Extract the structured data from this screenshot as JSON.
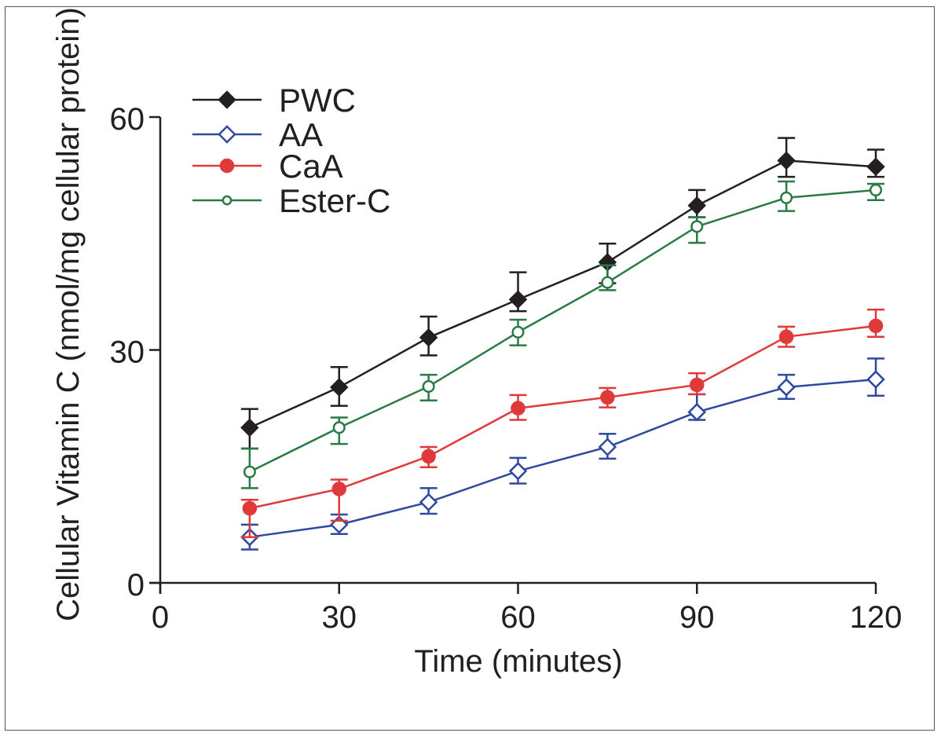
{
  "chart_data": {
    "type": "line",
    "title": "",
    "xlabel": "Time (minutes)",
    "ylabel": "Cellular Vitamin C (nmol/mg cellular protein)",
    "xlim": [
      0,
      120
    ],
    "ylim": [
      0,
      60
    ],
    "xticks": [
      0,
      30,
      60,
      90,
      120
    ],
    "xtick_labels": [
      "0",
      "30",
      "60",
      "90",
      "120"
    ],
    "yticks": [
      0,
      30,
      60
    ],
    "ytick_labels": [
      "0",
      "30",
      "60"
    ],
    "grid": false,
    "legend_position": "top-left",
    "x": [
      15,
      30,
      45,
      60,
      75,
      90,
      105,
      120
    ],
    "series": [
      {
        "name": "PWC",
        "color": "#231f20",
        "marker": "filled-diamond",
        "values": [
          20.0,
          25.2,
          31.6,
          36.5,
          41.3,
          48.6,
          54.4,
          53.6
        ],
        "error_upper": [
          22.4,
          27.8,
          34.3,
          40.0,
          43.7,
          50.6,
          57.3,
          55.8
        ],
        "error_lower": [
          17.3,
          22.8,
          29.3,
          35.0,
          38.6,
          47.1,
          52.3,
          52.3
        ]
      },
      {
        "name": "AA",
        "color": "#2e4aa0",
        "marker": "open-diamond",
        "values": [
          5.9,
          7.5,
          10.4,
          14.4,
          17.5,
          22.0,
          25.2,
          26.2
        ],
        "error_upper": [
          7.5,
          8.8,
          12.2,
          16.1,
          19.2,
          24.3,
          26.8,
          28.9
        ],
        "error_lower": [
          4.3,
          6.3,
          8.9,
          12.8,
          16.0,
          21.0,
          23.7,
          24.1
        ]
      },
      {
        "name": "CaA",
        "color": "#e0393a",
        "marker": "filled-circle",
        "values": [
          9.6,
          12.1,
          16.3,
          22.5,
          23.9,
          25.5,
          31.7,
          33.1
        ],
        "error_upper": [
          10.7,
          13.3,
          17.5,
          24.2,
          25.1,
          27.0,
          33.0,
          35.2
        ],
        "error_lower": [
          5.9,
          8.0,
          14.9,
          21.0,
          22.6,
          24.3,
          30.4,
          31.7
        ]
      },
      {
        "name": "Ester-C",
        "color": "#2a7a45",
        "marker": "open-circle",
        "values": [
          14.3,
          20.0,
          25.3,
          32.3,
          38.7,
          45.9,
          49.6,
          50.6
        ],
        "error_upper": [
          17.3,
          21.3,
          26.8,
          33.9,
          40.9,
          47.1,
          51.7,
          51.4
        ],
        "error_lower": [
          12.2,
          17.9,
          23.5,
          30.6,
          37.7,
          43.8,
          47.9,
          49.3
        ]
      }
    ]
  }
}
